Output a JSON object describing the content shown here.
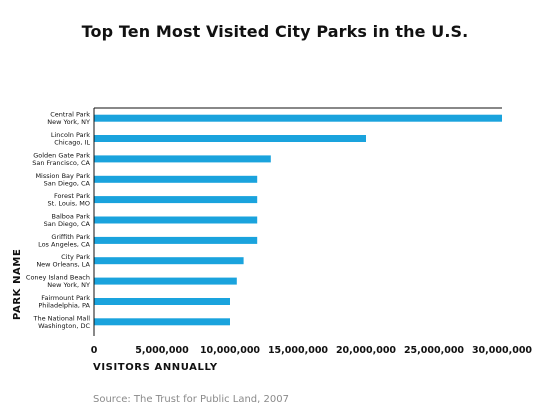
{
  "chart_data": {
    "type": "bar",
    "orientation": "horizontal",
    "title": "Top Ten Most Visited City Parks in the U.S.",
    "xlabel": "VISITORS ANNUALLY",
    "ylabel": "PARK NAME",
    "source": "Source: The Trust for Public Land, 2007",
    "bar_color": "#1aa3dd",
    "xlim": [
      0,
      30000000
    ],
    "x_ticks": [
      "0",
      "5,000,000",
      "10,000,000",
      "15,000,000",
      "20,000,000",
      "25,000,000",
      "30,000,000"
    ],
    "x_tick_values": [
      0,
      5000000,
      10000000,
      15000000,
      20000000,
      25000000,
      30000000
    ],
    "grid": false,
    "categories": [
      {
        "name": "Central Park",
        "location": "New York, NY"
      },
      {
        "name": "Lincoln Park",
        "location": "Chicago, IL"
      },
      {
        "name": "Golden Gate Park",
        "location": "San Francisco, CA"
      },
      {
        "name": "Mission Bay Park",
        "location": "San Diego, CA"
      },
      {
        "name": "Forest Park",
        "location": "St. Louis, MO"
      },
      {
        "name": "Balboa Park",
        "location": "San Diego, CA"
      },
      {
        "name": "Griffith Park",
        "location": "Los Angeles, CA"
      },
      {
        "name": "City Park",
        "location": "New Orleans, LA"
      },
      {
        "name": "Coney Island Beach",
        "location": "New York, NY"
      },
      {
        "name": "Fairmount Park",
        "location": "Philadelphia, PA"
      },
      {
        "name": "The National Mall",
        "location": "Washington, DC"
      }
    ],
    "values": [
      30000000,
      20000000,
      13000000,
      12000000,
      12000000,
      12000000,
      12000000,
      11000000,
      10500000,
      10000000,
      10000000
    ]
  }
}
